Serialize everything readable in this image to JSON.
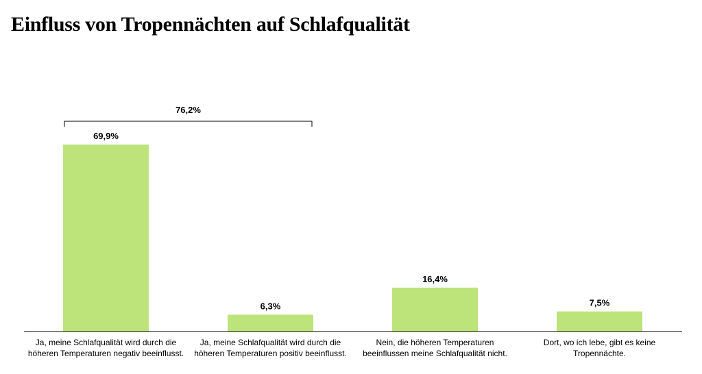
{
  "title": "Einfluss von Tropennächten auf Schlafqualität",
  "chart_data": {
    "type": "bar",
    "title": "Einfluss von Tropennächten auf Schlafqualität",
    "categories": [
      "Ja, meine Schlafqualität wird durch die höheren Temperaturen negativ beeinflusst.",
      "Ja, meine Schlafqualität wird durch die höheren Temperaturen positiv beeinflusst.",
      "Nein, die höheren Temperaturen beeinflussen meine Schlafqualität nicht.",
      "Dort, wo ich lebe, gibt es keine Tropennächte."
    ],
    "values": [
      69.9,
      6.3,
      16.4,
      7.5
    ],
    "value_labels": [
      "69,9%",
      "6,3%",
      "16,4%",
      "7,5%"
    ],
    "bracket": {
      "label": "76,2%",
      "value": 76.2,
      "spans_categories": [
        0,
        1
      ]
    },
    "unit": "%",
    "bar_color": "#bde37b",
    "ylim": [
      0,
      80
    ],
    "grid": false,
    "legend": "none",
    "xlabel": "",
    "ylabel": ""
  }
}
